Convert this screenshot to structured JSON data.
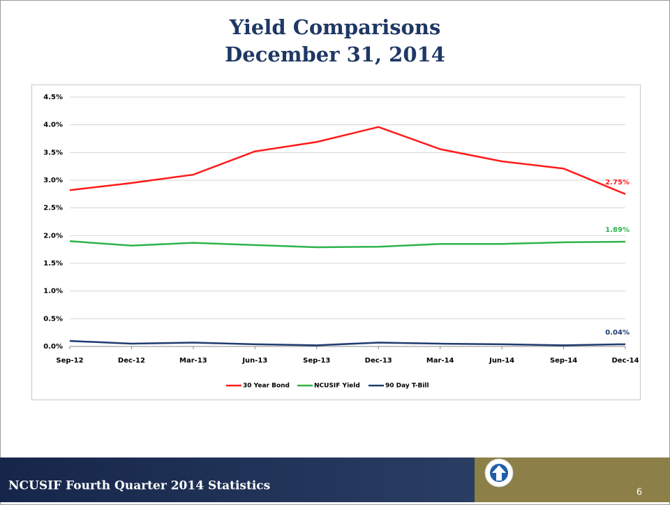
{
  "slide_title": [
    "Yield Comparisons",
    "December 31, 2014"
  ],
  "chart_data": {
    "type": "line",
    "categories": [
      "Sep-12",
      "Dec-12",
      "Mar-13",
      "Jun-13",
      "Sep-13",
      "Dec-13",
      "Mar-14",
      "Jun-14",
      "Sep-14",
      "Dec-14"
    ],
    "series": [
      {
        "name": "30 Year Bond",
        "color": "#ff1a1a",
        "values": [
          2.82,
          2.95,
          3.1,
          3.52,
          3.69,
          3.96,
          3.56,
          3.34,
          3.21,
          2.75
        ],
        "value_labels": [
          null,
          null,
          null,
          null,
          null,
          null,
          null,
          null,
          null,
          "2.75%"
        ]
      },
      {
        "name": "NCUSIF Yield",
        "color": "#2db34a",
        "values": [
          1.9,
          1.82,
          1.87,
          1.83,
          1.79,
          1.8,
          1.85,
          1.85,
          1.88,
          1.89
        ],
        "value_labels": [
          null,
          null,
          null,
          null,
          null,
          null,
          null,
          null,
          null,
          "1.89%"
        ]
      },
      {
        "name": "90 Day T-Bill",
        "color": "#1f3a6e",
        "values": [
          0.1,
          0.05,
          0.07,
          0.04,
          0.02,
          0.07,
          0.05,
          0.04,
          0.02,
          0.04
        ],
        "value_labels": [
          null,
          null,
          null,
          null,
          null,
          null,
          null,
          null,
          null,
          "0.04%"
        ]
      }
    ],
    "ylim": [
      0,
      4.5
    ],
    "yticks": [
      {
        "value": 0,
        "label": "0.0%"
      },
      {
        "value": 0.5,
        "label": "0.5%"
      },
      {
        "value": 1,
        "label": "1.0%"
      },
      {
        "value": 1.5,
        "label": "1.5%"
      },
      {
        "value": 2,
        "label": "2.0%"
      },
      {
        "value": 2.5,
        "label": "2.5%"
      },
      {
        "value": 3,
        "label": "3.0%"
      },
      {
        "value": 3.5,
        "label": "3.5%"
      },
      {
        "value": 4,
        "label": "4.0%"
      },
      {
        "value": 4.5,
        "label": "4.5%"
      }
    ],
    "grid": true,
    "legend": "bottom"
  },
  "footer": {
    "text": "NCUSIF Fourth Quarter 2014 Statistics",
    "page": "6"
  }
}
